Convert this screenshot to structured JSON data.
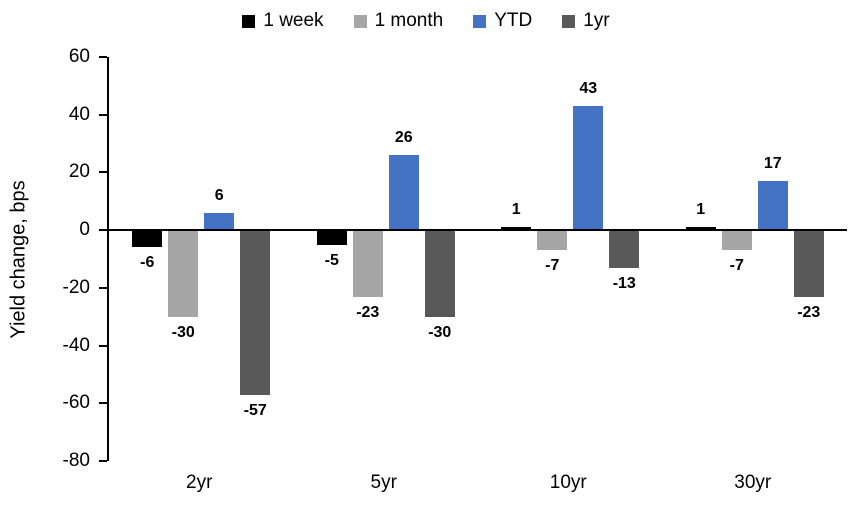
{
  "chart_data": {
    "type": "bar",
    "title": "",
    "xlabel": "",
    "ylabel": "Yield change, bps",
    "categories": [
      "2yr",
      "5yr",
      "10yr",
      "30yr"
    ],
    "series": [
      {
        "name": "1 week",
        "color": "#000000",
        "values": [
          -6,
          -5,
          1,
          1
        ]
      },
      {
        "name": "1 month",
        "color": "#a6a6a6",
        "values": [
          -30,
          -23,
          -7,
          -7
        ]
      },
      {
        "name": "YTD",
        "color": "#4472c4",
        "values": [
          6,
          26,
          43,
          17
        ]
      },
      {
        "name": "1yr",
        "color": "#595959",
        "values": [
          -57,
          -30,
          -13,
          -23
        ]
      }
    ],
    "ylim": [
      -80,
      60
    ],
    "ytick_step": 20,
    "yticks": [
      60,
      40,
      20,
      0,
      -20,
      -40,
      -60,
      -80
    ],
    "grid": false,
    "legend_position": "top",
    "data_labels": true,
    "background": "#ffffff"
  }
}
